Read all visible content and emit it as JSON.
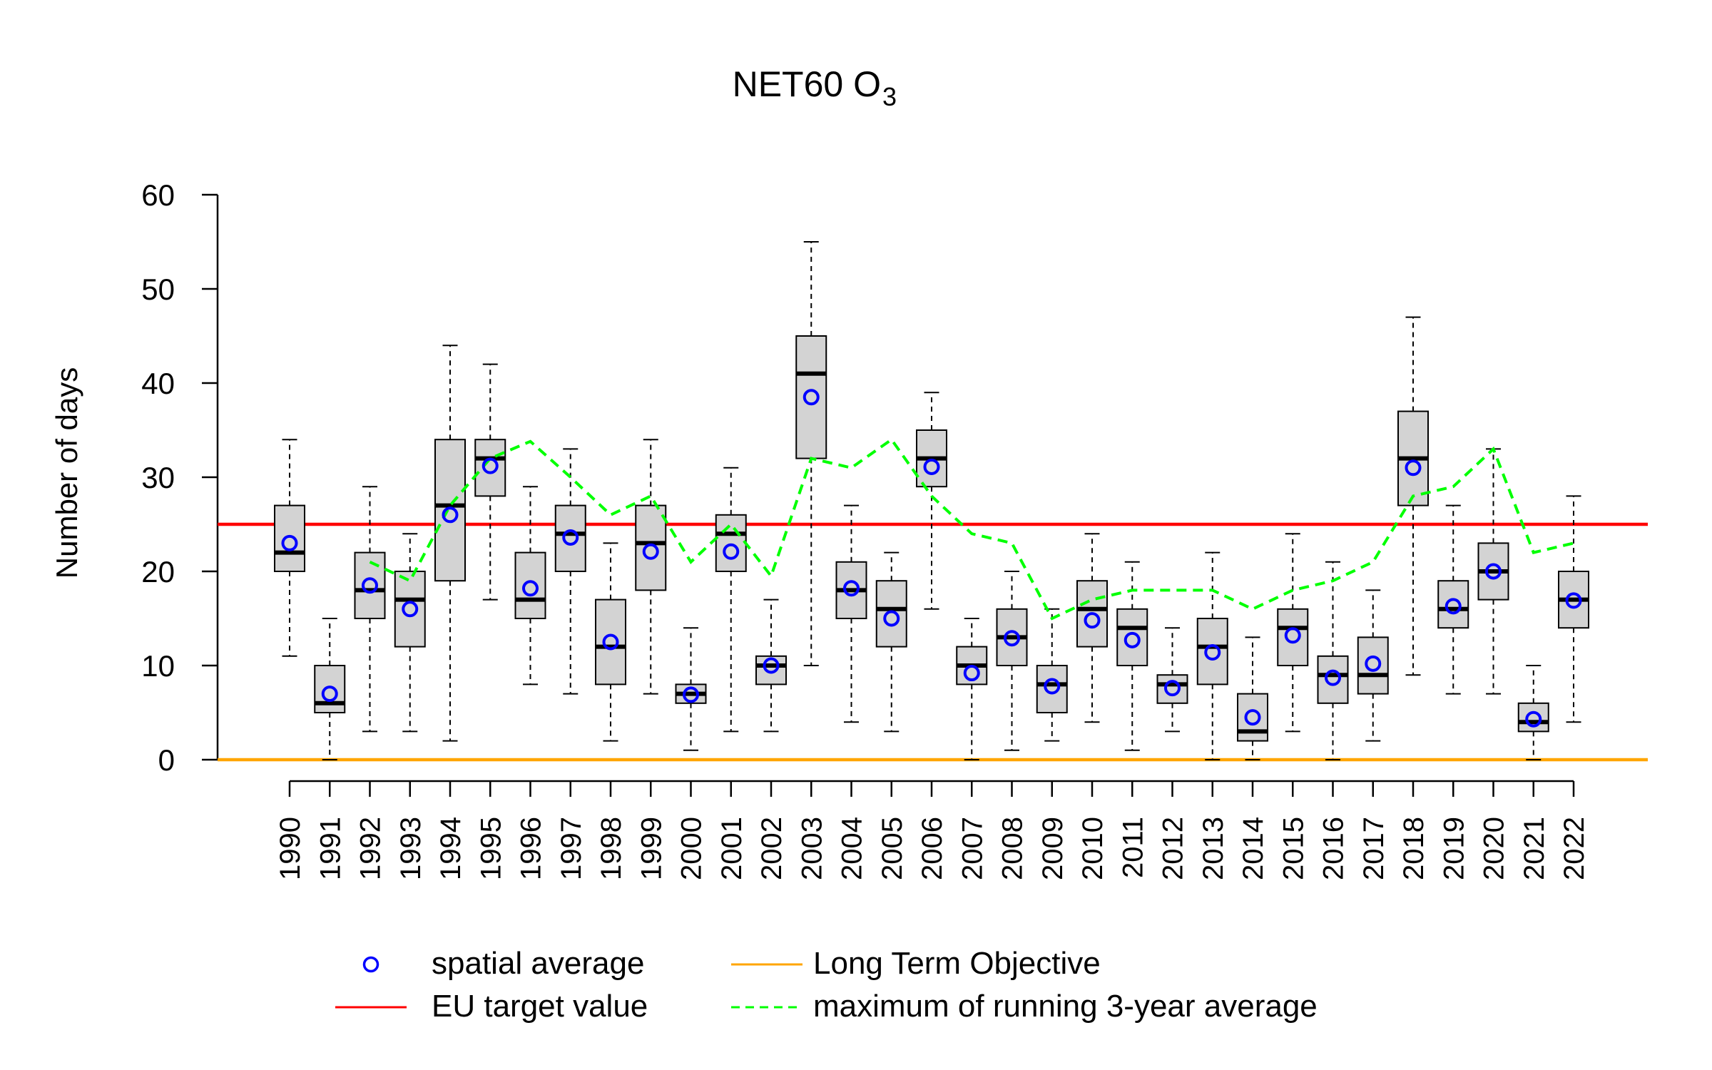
{
  "chart_data": {
    "type": "box",
    "title": {
      "main": "NET60 O",
      "subscript": "3"
    },
    "ylabel": "Number of days",
    "ylim": [
      0,
      60
    ],
    "yticks": [
      0,
      10,
      20,
      30,
      40,
      50,
      60
    ],
    "reference_lines": [
      {
        "name": "EU target value",
        "value": 25,
        "color": "#ff0000"
      },
      {
        "name": "Long Term Objective",
        "value": 0,
        "color": "#ffa500"
      }
    ],
    "legend": {
      "placement": "bottom",
      "items": [
        {
          "label": "spatial average",
          "kind": "circle",
          "color": "#0000ff"
        },
        {
          "label": "Long Term Objective",
          "kind": "line",
          "color": "#ffa500"
        },
        {
          "label": "EU target value",
          "kind": "line",
          "color": "#ff0000"
        },
        {
          "label": "maximum of running 3-year average",
          "kind": "dashed",
          "color": "#00ff00"
        }
      ]
    },
    "colors": {
      "box_fill": "#d3d3d3",
      "mean": "#0000ff",
      "running": "#00ff00"
    },
    "boxes": [
      {
        "year": "1990",
        "min": 11,
        "q1": 20,
        "median": 22,
        "q3": 27,
        "max": 34,
        "mean": 23
      },
      {
        "year": "1991",
        "min": 0,
        "q1": 5,
        "median": 6,
        "q3": 10,
        "max": 15,
        "mean": 7
      },
      {
        "year": "1992",
        "min": 3,
        "q1": 15,
        "median": 18,
        "q3": 22,
        "max": 29,
        "mean": 18.5
      },
      {
        "year": "1993",
        "min": 3,
        "q1": 12,
        "median": 17,
        "q3": 20,
        "max": 24,
        "mean": 16
      },
      {
        "year": "1994",
        "min": 2,
        "q1": 19,
        "median": 27,
        "q3": 34,
        "max": 44,
        "mean": 26
      },
      {
        "year": "1995",
        "min": 17,
        "q1": 28,
        "median": 32,
        "q3": 34,
        "max": 42,
        "mean": 31.2
      },
      {
        "year": "1996",
        "min": 8,
        "q1": 15,
        "median": 17,
        "q3": 22,
        "max": 29,
        "mean": 18.2
      },
      {
        "year": "1997",
        "min": 7,
        "q1": 20,
        "median": 24,
        "q3": 27,
        "max": 33,
        "mean": 23.6
      },
      {
        "year": "1998",
        "min": 2,
        "q1": 8,
        "median": 12,
        "q3": 17,
        "max": 23,
        "mean": 12.5
      },
      {
        "year": "1999",
        "min": 7,
        "q1": 18,
        "median": 23,
        "q3": 27,
        "max": 34,
        "mean": 22.1
      },
      {
        "year": "2000",
        "min": 1,
        "q1": 6,
        "median": 7,
        "q3": 8,
        "max": 14,
        "mean": 6.9
      },
      {
        "year": "2001",
        "min": 3,
        "q1": 20,
        "median": 24,
        "q3": 26,
        "max": 31,
        "mean": 22.1
      },
      {
        "year": "2002",
        "min": 3,
        "q1": 8,
        "median": 10,
        "q3": 11,
        "max": 17,
        "mean": 10
      },
      {
        "year": "2003",
        "min": 10,
        "q1": 32,
        "median": 41,
        "q3": 45,
        "max": 55,
        "mean": 38.5
      },
      {
        "year": "2004",
        "min": 4,
        "q1": 15,
        "median": 18,
        "q3": 21,
        "max": 27,
        "mean": 18.2
      },
      {
        "year": "2005",
        "min": 3,
        "q1": 12,
        "median": 16,
        "q3": 19,
        "max": 22,
        "mean": 15
      },
      {
        "year": "2006",
        "min": 16,
        "q1": 29,
        "median": 32,
        "q3": 35,
        "max": 39,
        "mean": 31.1
      },
      {
        "year": "2007",
        "min": 0,
        "q1": 8,
        "median": 10,
        "q3": 12,
        "max": 15,
        "mean": 9.2
      },
      {
        "year": "2008",
        "min": 1,
        "q1": 10,
        "median": 13,
        "q3": 16,
        "max": 20,
        "mean": 12.9
      },
      {
        "year": "2009",
        "min": 2,
        "q1": 5,
        "median": 8,
        "q3": 10,
        "max": 16,
        "mean": 7.8
      },
      {
        "year": "2010",
        "min": 4,
        "q1": 12,
        "median": 16,
        "q3": 19,
        "max": 24,
        "mean": 14.8
      },
      {
        "year": "2011",
        "min": 1,
        "q1": 10,
        "median": 14,
        "q3": 16,
        "max": 21,
        "mean": 12.7
      },
      {
        "year": "2012",
        "min": 3,
        "q1": 6,
        "median": 8,
        "q3": 9,
        "max": 14,
        "mean": 7.6
      },
      {
        "year": "2013",
        "min": 0,
        "q1": 8,
        "median": 12,
        "q3": 15,
        "max": 22,
        "mean": 11.4
      },
      {
        "year": "2014",
        "min": 0,
        "q1": 2,
        "median": 3,
        "q3": 7,
        "max": 13,
        "mean": 4.5
      },
      {
        "year": "2015",
        "min": 3,
        "q1": 10,
        "median": 14,
        "q3": 16,
        "max": 24,
        "mean": 13.2
      },
      {
        "year": "2016",
        "min": 0,
        "q1": 6,
        "median": 9,
        "q3": 11,
        "max": 21,
        "mean": 8.7
      },
      {
        "year": "2017",
        "min": 2,
        "q1": 7,
        "median": 9,
        "q3": 13,
        "max": 18,
        "mean": 10.2
      },
      {
        "year": "2018",
        "min": 9,
        "q1": 27,
        "median": 32,
        "q3": 37,
        "max": 47,
        "mean": 31
      },
      {
        "year": "2019",
        "min": 7,
        "q1": 14,
        "median": 16,
        "q3": 19,
        "max": 27,
        "mean": 16.3
      },
      {
        "year": "2020",
        "min": 7,
        "q1": 17,
        "median": 20,
        "q3": 23,
        "max": 33,
        "mean": 20
      },
      {
        "year": "2021",
        "min": 0,
        "q1": 3,
        "median": 4,
        "q3": 6,
        "max": 10,
        "mean": 4.3
      },
      {
        "year": "2022",
        "min": 4,
        "q1": 14,
        "median": 17,
        "q3": 20,
        "max": 28,
        "mean": 16.9
      }
    ],
    "running_max": {
      "name": "maximum of running 3-year average",
      "years": [
        "1992",
        "1993",
        "1994",
        "1995",
        "1996",
        "1997",
        "1998",
        "1999",
        "2000",
        "2001",
        "2002",
        "2003",
        "2004",
        "2005",
        "2006",
        "2007",
        "2008",
        "2009",
        "2010",
        "2011",
        "2012",
        "2013",
        "2014",
        "2015",
        "2016",
        "2017",
        "2018",
        "2019",
        "2020",
        "2021",
        "2022"
      ],
      "values": [
        21,
        19,
        27,
        32,
        33.8,
        30,
        26,
        28,
        21,
        25,
        19.5,
        32,
        31,
        34,
        28,
        24,
        23,
        15,
        17,
        18,
        18,
        18,
        16,
        18,
        19,
        21,
        28,
        29,
        33,
        22,
        23
      ]
    }
  }
}
